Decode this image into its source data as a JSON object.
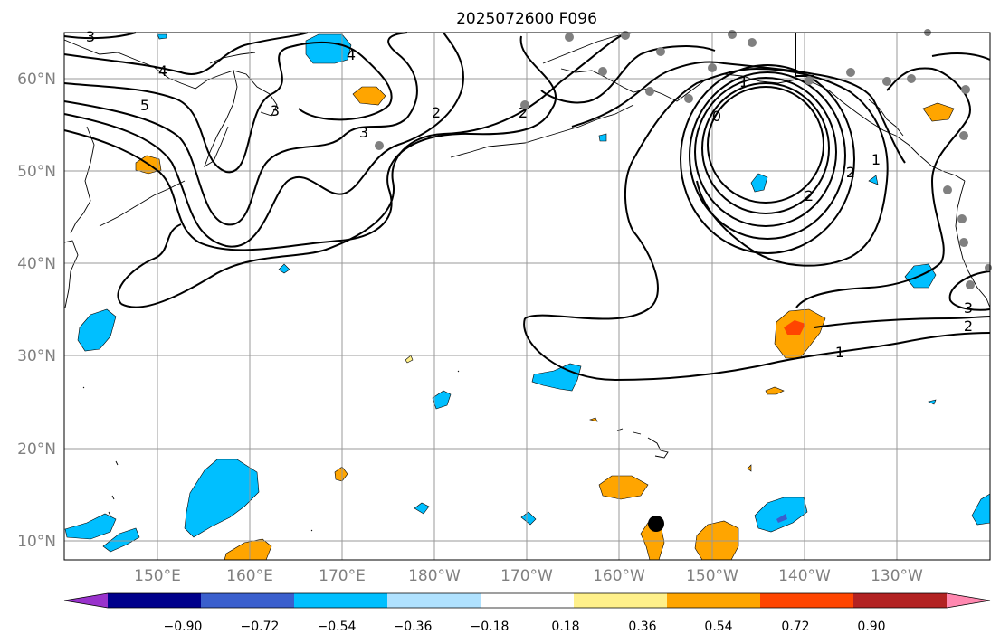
{
  "title": "2025072600 F096",
  "map": {
    "lon_ticks": [
      "150°E",
      "160°E",
      "170°E",
      "180°W",
      "170°W",
      "160°W",
      "150°W",
      "140°W",
      "130°W"
    ],
    "lat_ticks": [
      "60°N",
      "50°N",
      "40°N",
      "30°N",
      "20°N",
      "10°N"
    ],
    "contour_labels": [
      "3",
      "4",
      "5",
      "4",
      "3",
      "2",
      "2",
      "1",
      "0",
      "2",
      "1",
      "2",
      "3",
      "2",
      "1",
      "3"
    ],
    "station_dot_color": "#808080",
    "marker_color": "#000000"
  },
  "colorbar": {
    "colors": [
      "#9932cc",
      "#00008b",
      "#3a5fcd",
      "#00bfff",
      "#b0e2ff",
      "#ffffff",
      "#fff08a",
      "#ffa500",
      "#ff4500",
      "#b22222",
      "#ff88b0"
    ],
    "tick_labels": [
      "−0.90",
      "−0.72",
      "−0.54",
      "−0.36",
      "−0.18",
      "0.18",
      "0.36",
      "0.54",
      "0.72",
      "0.90"
    ]
  }
}
